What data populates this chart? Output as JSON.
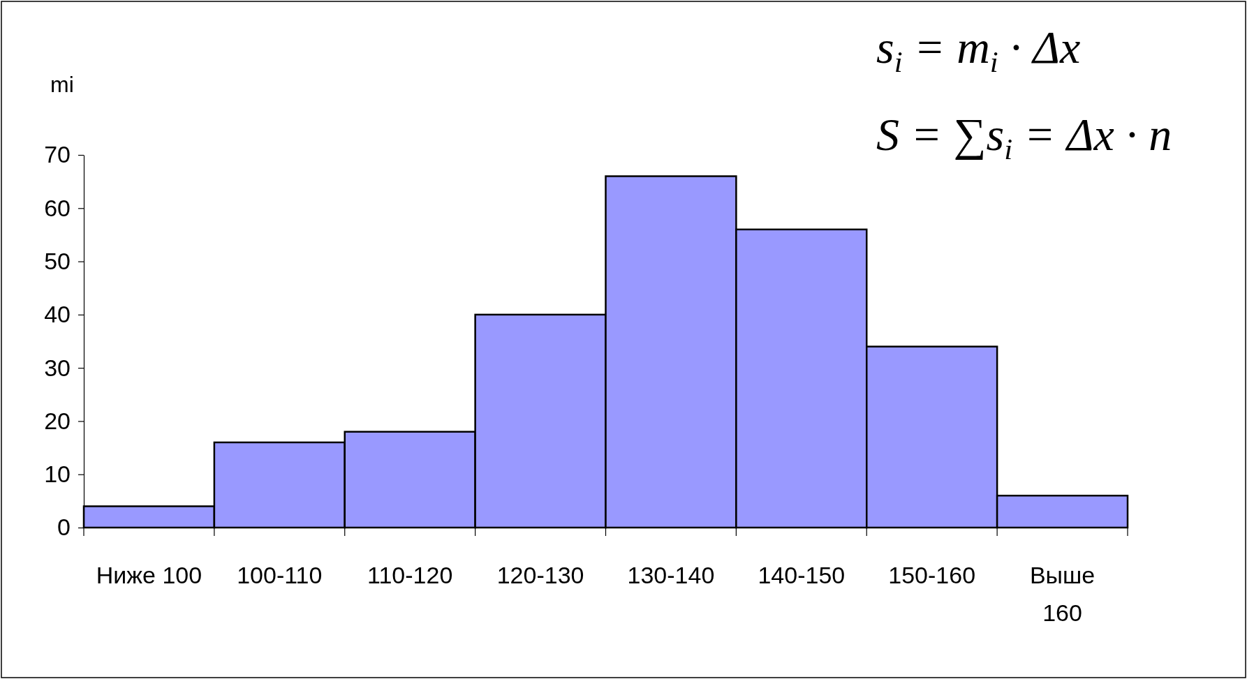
{
  "chart_data": {
    "type": "bar",
    "ylabel": "mi",
    "categories": [
      "Ниже 100",
      "100-110",
      "110-120",
      "120-130",
      "130-140",
      "140-150",
      "150-160",
      "Выше 160"
    ],
    "values": [
      4,
      16,
      18,
      40,
      66,
      56,
      34,
      6
    ],
    "color": "#9999ff",
    "ylim": [
      0,
      70
    ],
    "yticks": [
      0,
      10,
      20,
      30,
      40,
      50,
      60,
      70
    ],
    "grid": false,
    "annotations": [
      "s$_{i}$ = m$_{i}$ · Δx",
      "S = ∑s$_{i}$ = Δx · n"
    ]
  }
}
